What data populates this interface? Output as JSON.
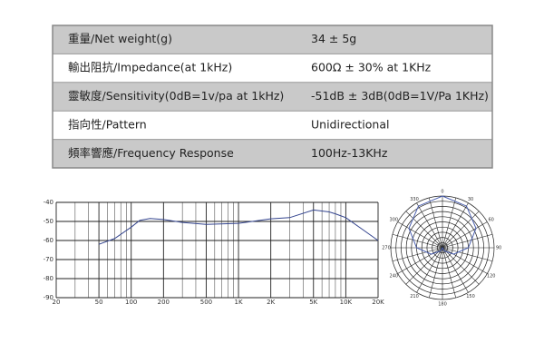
{
  "table": {
    "rows": [
      [
        "重量/Net weight(g)",
        "34 ± 5g"
      ],
      [
        "輸出阻抗/Impedance(at 1kHz)",
        "600Ω ± 30% at 1KHz"
      ],
      [
        "靈敏度/Sensitivity(0dB=1v/pa at 1kHz)",
        "-51dB ± 3dB(0dB=1V/Pa 1KHz)"
      ],
      [
        "指向性/Pattern",
        "Unidirectional"
      ],
      [
        "頻率響應/Frequency Response",
        "100Hz-13KHz"
      ]
    ]
  },
  "chart_data": [
    {
      "type": "line",
      "xlog": true,
      "grid": true,
      "color": "#34458f",
      "xlim": [
        20,
        20000
      ],
      "ylim": [
        -40,
        -90
      ],
      "yticks": [
        -40,
        -50,
        -60,
        -70,
        -80,
        -90
      ],
      "xticks": [
        20,
        50,
        100,
        200,
        500,
        {
          "value": 1000,
          "label": "1K"
        },
        {
          "value": 2000,
          "label": "2K"
        },
        {
          "value": 5000,
          "label": "5K"
        },
        {
          "value": 10000,
          "label": "10K"
        },
        {
          "value": 20000,
          "label": "20K"
        }
      ],
      "xgrid": [
        30,
        40,
        60,
        70,
        80,
        90,
        300,
        400,
        600,
        700,
        800,
        900,
        3000,
        4000,
        6000,
        7000,
        8000,
        9000
      ],
      "x": [
        50,
        70,
        100,
        120,
        150,
        200,
        300,
        500,
        1000,
        2000,
        3000,
        5000,
        7000,
        8000,
        10000,
        15000,
        20000
      ],
      "values": [
        -62,
        -59,
        -53,
        -49.5,
        -48.5,
        -49,
        -50.5,
        -51.5,
        -51,
        -48.6,
        -48,
        -44,
        -45,
        -46,
        -48,
        -55,
        -60
      ]
    },
    {
      "type": "polar",
      "color": "#4a5fb0",
      "rlim": [
        0,
        1
      ],
      "thetaticks": [
        0,
        30,
        60,
        90,
        120,
        150,
        180,
        210,
        240,
        270,
        300,
        330
      ],
      "thetagrid": [
        0,
        15,
        30,
        45,
        60,
        75,
        90,
        105,
        120,
        135,
        150,
        165,
        180,
        195,
        210,
        225,
        240,
        255,
        270,
        285,
        300,
        315,
        330,
        345
      ],
      "rgrid": [
        0.1,
        0.2,
        0.3,
        0.4,
        0.5,
        0.6,
        0.7,
        0.8,
        0.9,
        1
      ],
      "angles": [
        0,
        30,
        60,
        90,
        120,
        150,
        180,
        210,
        240,
        270,
        300,
        330
      ],
      "values": [
        1,
        0.93,
        0.75,
        0.5,
        0.25,
        0.07,
        0,
        0.07,
        0.25,
        0.5,
        0.75,
        0.93
      ]
    }
  ]
}
